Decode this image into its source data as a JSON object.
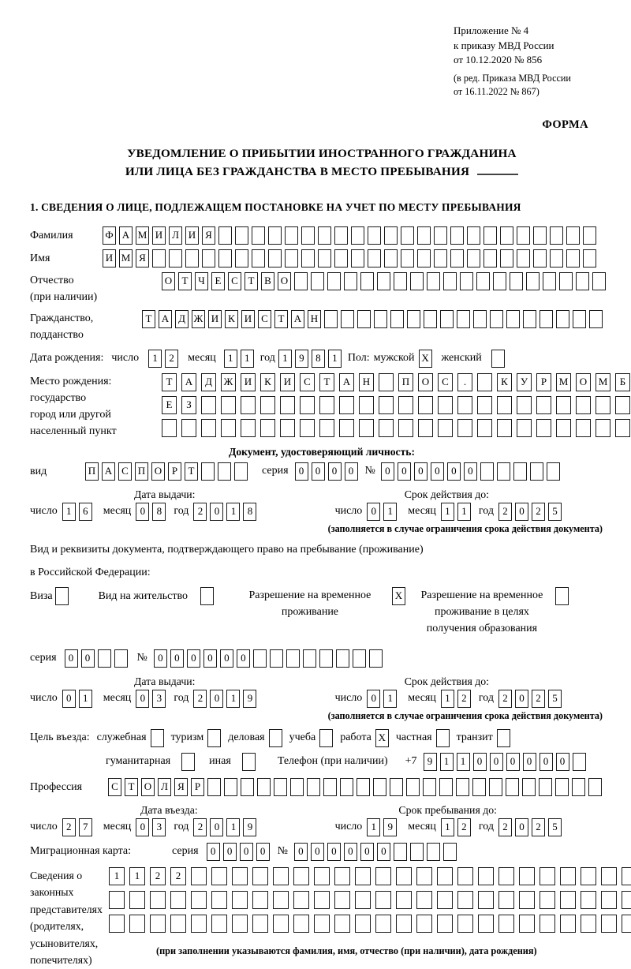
{
  "colors": {
    "text": "#000000",
    "background": "#ffffff",
    "cell_border": "#1b1b1b"
  },
  "header": {
    "lines": [
      "Приложение № 4",
      "к приказу МВД России",
      "от 10.12.2020 № 856"
    ],
    "lines2": [
      "(в ред. Приказа МВД России",
      "от 16.11.2022 № 867)"
    ],
    "forma": "ФОРМА"
  },
  "title": {
    "line1": "УВЕДОМЛЕНИЕ О ПРИБЫТИИ ИНОСТРАННОГО ГРАЖДАНИНА",
    "line2": "ИЛИ ЛИЦА БЕЗ ГРАЖДАНСТВА В МЕСТО ПРЕБЫВАНИЯ"
  },
  "section1": {
    "heading": "1. СВЕДЕНИЯ О ЛИЦЕ, ПОДЛЕЖАЩЕМ ПОСТАНОВКЕ НА УЧЕТ ПО МЕСТУ ПРЕБЫВАНИЯ"
  },
  "labels": {
    "day": "число",
    "month": "месяц",
    "year": "год",
    "series": "серия",
    "number": "№"
  },
  "fields": {
    "surname": {
      "label": "Фамилия",
      "cells": {
        "text": "ФАМИЛИЯ",
        "length": 30
      }
    },
    "name": {
      "label": "Имя",
      "cells": {
        "text": "ИМЯ",
        "length": 30
      }
    },
    "patronymic": {
      "label": "Отчество",
      "label2": "(при наличии)",
      "cells": {
        "text": "ОТЧЕСТВО",
        "length": 27
      }
    },
    "citizenship": {
      "label": "Гражданство,",
      "label2": "подданство",
      "cells": {
        "text": "ТАДЖИКИСТАН",
        "length": 28
      }
    },
    "birthdate": {
      "label": "Дата рождения:",
      "day": {
        "text": "12",
        "length": 2
      },
      "month": {
        "text": "11",
        "length": 2
      },
      "year": {
        "text": "1981",
        "length": 4
      },
      "sex_label": "Пол:",
      "male_label": "мужской",
      "male_checked": "X",
      "female_label": "женский",
      "female_checked": ""
    },
    "birthplace": {
      "labels": [
        "Место рождения:",
        "государство",
        "город или другой",
        "населенный пункт"
      ],
      "row1": {
        "text": "ТАДЖИКИСТАН ПОС. КУРМОМБ",
        "length": 24
      },
      "row2": {
        "text": "ЕЗ",
        "length": 24
      },
      "row3": {
        "text": "",
        "length": 24
      }
    },
    "id_doc": {
      "heading": "Документ, удостоверяющий личность:",
      "kind_label": "вид",
      "kind": {
        "text": "ПАСПОРТ",
        "length": 10
      },
      "series": {
        "text": "0000",
        "length": 4
      },
      "number": {
        "text": "000000",
        "length": 11
      }
    },
    "issue1": {
      "head_left": "Дата выдачи:",
      "head_right": "Срок действия до:",
      "day": {
        "text": "16",
        "length": 2
      },
      "month": {
        "text": "08",
        "length": 2
      },
      "year": {
        "text": "2018",
        "length": 4
      },
      "vday": {
        "text": "01",
        "length": 2
      },
      "vmonth": {
        "text": "11",
        "length": 2
      },
      "vyear": {
        "text": "2025",
        "length": 4
      },
      "note": "(заполняется в случае ограничения срока действия документа)"
    },
    "resid_doc": {
      "line1": "Вид и реквизиты документа, подтверждающего право на пребывание (проживание)",
      "line2": "в Российской Федерации:",
      "options": [
        {
          "label": "Виза",
          "checked": ""
        },
        {
          "label": "Вид на жительство",
          "checked": ""
        },
        {
          "label": "Разрешение на временное проживание",
          "checked": "X"
        },
        {
          "label": "Разрешение на временное проживание в целях получения образования",
          "checked": ""
        }
      ]
    },
    "resid_series": {
      "series": {
        "text": "00",
        "length": 4
      },
      "number": {
        "text": "000000",
        "length": 14
      }
    },
    "issue2": {
      "head_left": "Дата выдачи:",
      "head_right": "Срок действия до:",
      "day": {
        "text": "01",
        "length": 2
      },
      "month": {
        "text": "03",
        "length": 2
      },
      "year": {
        "text": "2019",
        "length": 4
      },
      "vday": {
        "text": "01",
        "length": 2
      },
      "vmonth": {
        "text": "12",
        "length": 2
      },
      "vyear": {
        "text": "2025",
        "length": 4
      },
      "note": "(заполняется в случае ограничения срока действия документа)"
    },
    "purpose": {
      "label": "Цель въезда:",
      "options": [
        {
          "label": "служебная",
          "checked": ""
        },
        {
          "label": "туризм",
          "checked": ""
        },
        {
          "label": "деловая",
          "checked": ""
        },
        {
          "label": "учеба",
          "checked": ""
        },
        {
          "label": "работа",
          "checked": "X"
        },
        {
          "label": "частная",
          "checked": ""
        },
        {
          "label": "транзит",
          "checked": ""
        }
      ],
      "options2": [
        {
          "label": "гуманитарная",
          "checked": ""
        },
        {
          "label": "иная",
          "checked": ""
        }
      ],
      "phone_label": "Телефон (при наличии)",
      "phone_prefix": "+7",
      "phone": {
        "text": "911000000",
        "length": 10
      }
    },
    "profession": {
      "label": "Профессия",
      "cells": {
        "text": "СТОЛЯР",
        "length": 30
      }
    },
    "entry": {
      "head_left": "Дата въезда:",
      "head_right": "Срок пребывания до:",
      "day": {
        "text": "27",
        "length": 2
      },
      "month": {
        "text": "03",
        "length": 2
      },
      "year": {
        "text": "2019",
        "length": 4
      },
      "vday": {
        "text": "19",
        "length": 2
      },
      "vmonth": {
        "text": "12",
        "length": 2
      },
      "vyear": {
        "text": "2025",
        "length": 4
      }
    },
    "migration_card": {
      "label": "Миграционная карта:",
      "series": {
        "text": "0000",
        "length": 4
      },
      "number": {
        "text": "000000",
        "length": 10
      }
    },
    "representatives": {
      "labels": [
        "Сведения о",
        "законных",
        "представителях",
        "(родителях,",
        "усыновителях,",
        "попечителях)"
      ],
      "row1": {
        "text": "1122",
        "length": 26
      },
      "row2": {
        "text": "",
        "length": 26
      },
      "row3": {
        "text": "",
        "length": 26
      },
      "note": "(при заполнении указываются фамилия, имя, отчество (при наличии), дата рождения)"
    }
  }
}
